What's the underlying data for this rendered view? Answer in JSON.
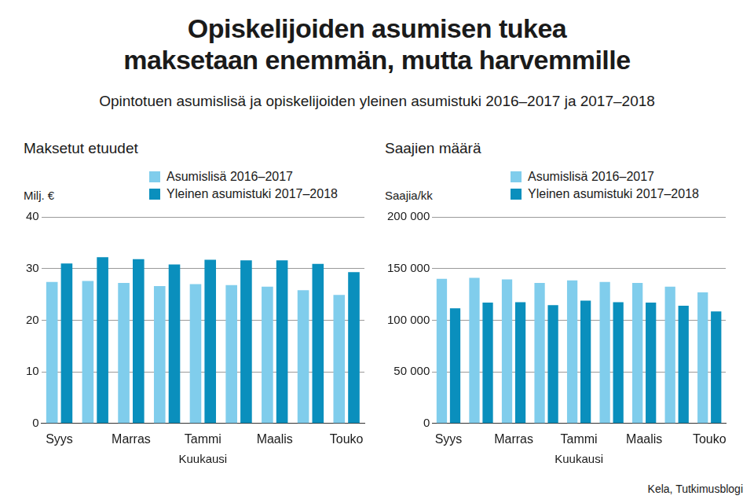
{
  "title": "Opiskelijoiden asumisen tukea\nmaksetaan enemmän, mutta harvemmille",
  "subtitle": "Opintotuen asumislisä ja opiskelijoiden yleinen asumistuki 2016–2017 ja 2017–2018",
  "source": "Kela, Tutkimusblogi",
  "chart_data": [
    {
      "type": "bar",
      "title": "Maksetut etuudet",
      "ylabel": "Milj. €",
      "xlabel": "Kuukausi",
      "categories": [
        "Syys",
        null,
        "Marras",
        null,
        "Tammi",
        null,
        "Maalis",
        null,
        "Touko"
      ],
      "series": [
        {
          "name": "Asumislisä 2016–2017",
          "color": "#80cdec",
          "values": [
            27.4,
            27.6,
            27.2,
            26.6,
            27.0,
            26.8,
            26.5,
            25.8,
            24.9
          ]
        },
        {
          "name": "Yleinen asumistuki 2017–2018",
          "color": "#0a8fbd",
          "values": [
            31.0,
            32.2,
            31.8,
            30.8,
            31.7,
            31.6,
            31.6,
            30.9,
            29.3
          ]
        }
      ],
      "ylim": [
        0,
        40
      ],
      "yticks": [
        0,
        10,
        20,
        30,
        40
      ],
      "grid": true,
      "legend": "top"
    },
    {
      "type": "bar",
      "title": "Saajien määrä",
      "ylabel": "Saajia/kk",
      "xlabel": "Kuukausi",
      "categories": [
        "Syys",
        null,
        "Marras",
        null,
        "Tammi",
        null,
        "Maalis",
        null,
        "Touko"
      ],
      "series": [
        {
          "name": "Asumislisä 2016–2017",
          "color": "#80cdec",
          "values": [
            140000,
            141000,
            139500,
            136000,
            138500,
            137000,
            136000,
            132500,
            127000
          ]
        },
        {
          "name": "Yleinen asumistuki 2017–2018",
          "color": "#0a8fbd",
          "values": [
            111500,
            117000,
            117500,
            114500,
            119000,
            117500,
            117000,
            114000,
            108500
          ]
        }
      ],
      "ylim": [
        0,
        200000
      ],
      "yticks": [
        0,
        {
          "value": 50000,
          "label": "50 000"
        },
        {
          "value": 100000,
          "label": "100 000"
        },
        {
          "value": 150000,
          "label": "150 000"
        },
        {
          "value": 200000,
          "label": "200 000"
        }
      ],
      "grid": true,
      "legend": "top"
    }
  ]
}
